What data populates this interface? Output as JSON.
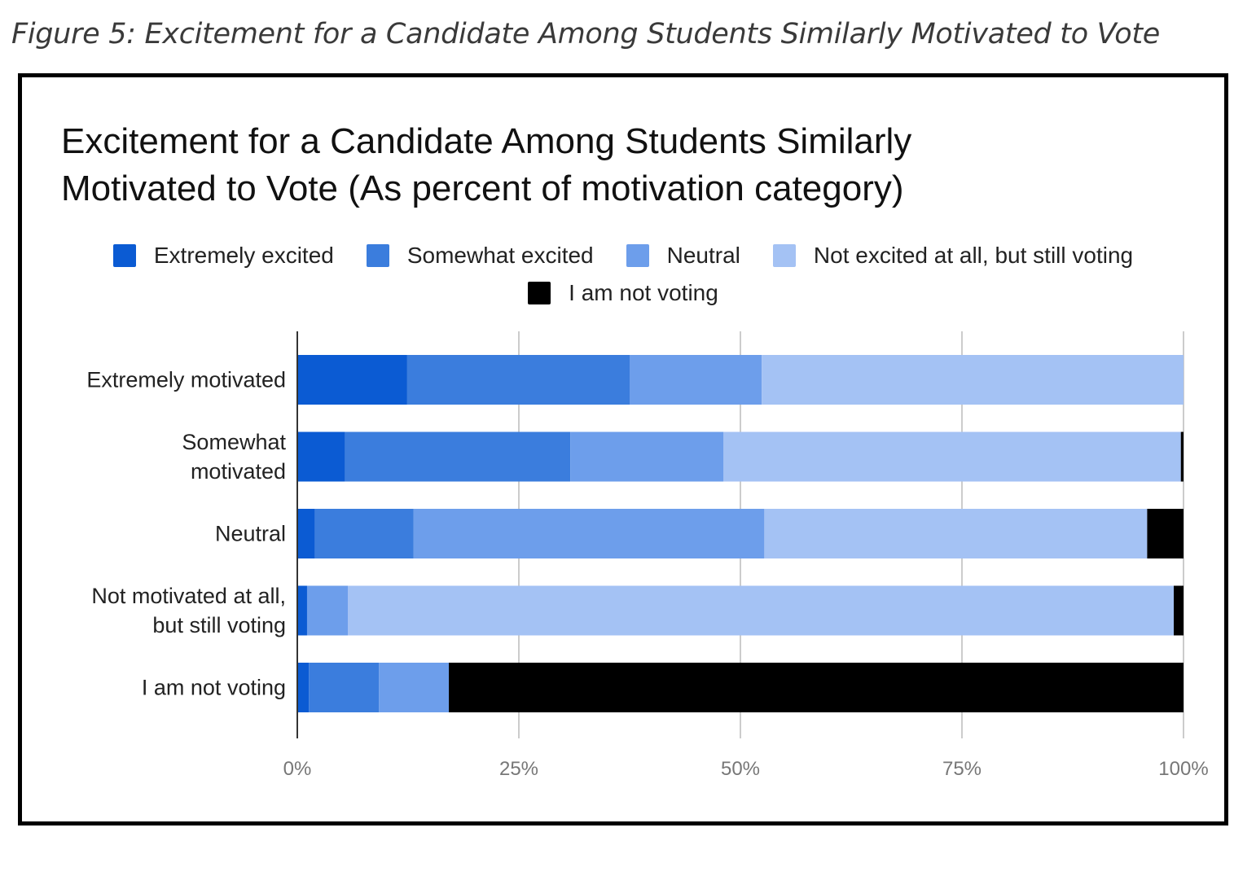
{
  "figure_caption": "Figure 5: Excitement for a Candidate Among Students Similarly Motivated to Vote",
  "chart_data": {
    "type": "bar",
    "orientation": "horizontal",
    "stacked": "percent",
    "title": "Excitement for a Candidate Among Students Similarly\nMotivated to Vote (As percent of motivation category)",
    "xlabel": "",
    "ylabel": "",
    "xlim": [
      0,
      100
    ],
    "x_ticks": [
      0,
      25,
      50,
      75,
      100
    ],
    "x_tick_labels": [
      "0%",
      "25%",
      "50%",
      "75%",
      "100%"
    ],
    "grid": true,
    "legend_position": "top",
    "categories": [
      "Extremely motivated",
      "Somewhat\nmotivated",
      "Neutral",
      "Not motivated at all,\nbut still voting",
      "I am not voting"
    ],
    "series": [
      {
        "name": "Extremely excited",
        "color": "#0b5bd3",
        "values": [
          12.4,
          5.4,
          2.0,
          1.1,
          1.3
        ]
      },
      {
        "name": "Somewhat excited",
        "color": "#3b7ddd",
        "values": [
          25.1,
          25.4,
          11.1,
          0.0,
          7.9
        ]
      },
      {
        "name": "Neutral",
        "color": "#6d9eeb",
        "values": [
          14.9,
          17.3,
          39.6,
          4.6,
          7.9
        ]
      },
      {
        "name": "Not excited at all, but still voting",
        "color": "#a4c2f4",
        "values": [
          47.6,
          51.6,
          43.2,
          93.2,
          0.0
        ]
      },
      {
        "name": "I am not voting",
        "color": "#000000",
        "values": [
          0.0,
          0.3,
          4.1,
          1.1,
          82.9
        ]
      }
    ]
  }
}
